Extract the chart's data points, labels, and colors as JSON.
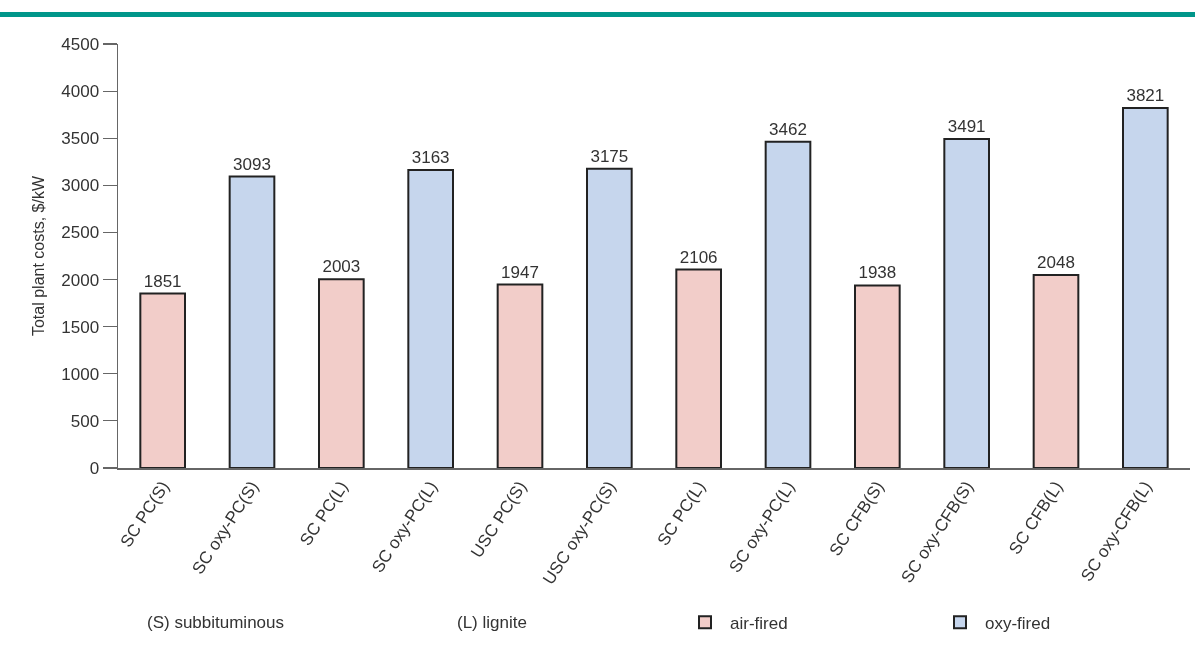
{
  "chart_data": {
    "type": "bar",
    "ylabel": "Total plant costs, $/kW",
    "categories": [
      "SC PC(S)",
      "SC oxy-PC(S)",
      "SC PC(L)",
      "SC oxy-PC(L)",
      "USC PC(S)",
      "USC oxy-PC(S)",
      "SC PC(L)",
      "SC oxy-PC(L)",
      "SC CFB(S)",
      "SC oxy-CFB(S)",
      "SC CFB(L)",
      "SC oxy-CFB(L)"
    ],
    "series": [
      {
        "name": "air-fired",
        "color": "#f2cdc9",
        "values": [
          1851,
          null,
          2003,
          null,
          1947,
          null,
          2106,
          null,
          1938,
          null,
          2048,
          null
        ]
      },
      {
        "name": "oxy-fired",
        "color": "#c6d6ed",
        "values": [
          null,
          3093,
          null,
          3163,
          null,
          3175,
          null,
          3462,
          null,
          3491,
          null,
          3821
        ]
      }
    ],
    "ylim": [
      0,
      4500
    ],
    "yticks": [
      0,
      500,
      1000,
      1500,
      2000,
      2500,
      3000,
      3500,
      4000,
      4500
    ],
    "data_labels": true,
    "legend": "bottom",
    "annotations": [
      "(S) subbituminous",
      "(L) lignite"
    ]
  }
}
